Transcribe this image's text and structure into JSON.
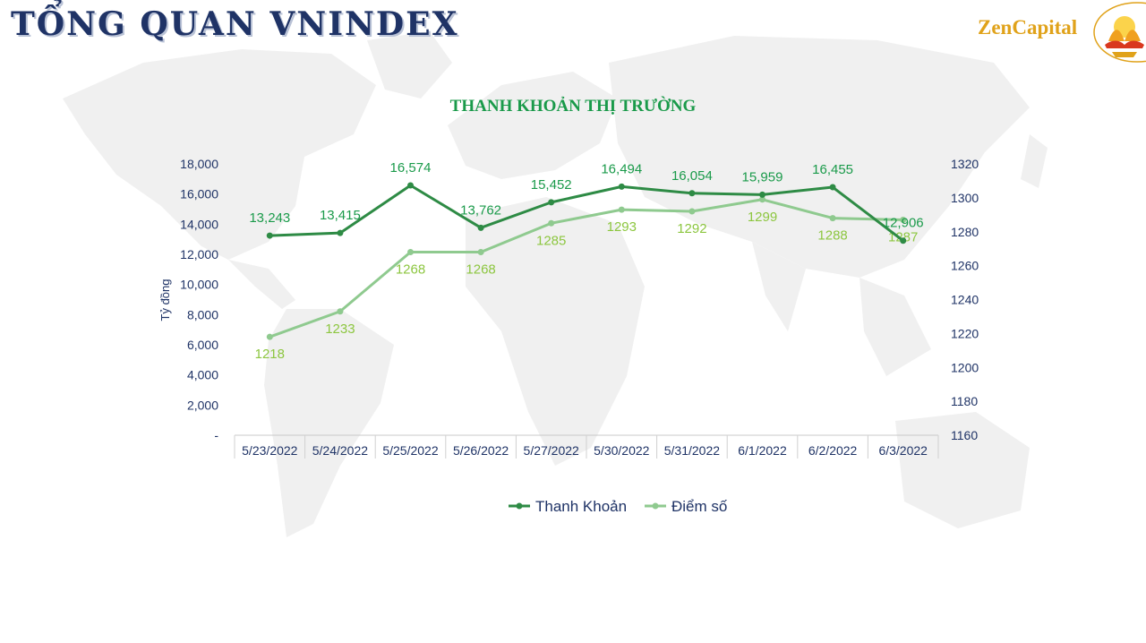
{
  "header": {
    "title": "TỔNG QUAN VNINDEX",
    "brand": "ZenCapital",
    "brand_color": "#e0a21a",
    "title_color": "#1f3366"
  },
  "chart_data": {
    "type": "line",
    "title": "THANH KHOẢN THỊ TRƯỜNG",
    "categories": [
      "5/23/2022",
      "5/24/2022",
      "5/25/2022",
      "5/26/2022",
      "5/27/2022",
      "5/30/2022",
      "5/31/2022",
      "6/1/2022",
      "6/2/2022",
      "6/3/2022"
    ],
    "ylabel": "Tỷ đồng",
    "y_ticks": [
      "-",
      "2,000",
      "4,000",
      "6,000",
      "8,000",
      "10,000",
      "12,000",
      "14,000",
      "16,000",
      "18,000"
    ],
    "ylim": [
      0,
      18000
    ],
    "y2lim": [
      1160,
      1320
    ],
    "y2_ticks": [
      "1160",
      "1180",
      "1200",
      "1220",
      "1240",
      "1260",
      "1280",
      "1300",
      "1320"
    ],
    "legend_position": "bottom",
    "grid": false,
    "series": [
      {
        "name": "Thanh Khoản",
        "axis": "left",
        "color": "#2e8b45",
        "values": [
          13243,
          13415,
          16574,
          13762,
          15452,
          16494,
          16054,
          15959,
          16455,
          12906
        ],
        "labels": [
          "13,243",
          "13,415",
          "16,574",
          "13,762",
          "15,452",
          "16,494",
          "16,054",
          "15,959",
          "16,455",
          "12,906"
        ],
        "label_color": "#1a9a4a"
      },
      {
        "name": "Điểm số",
        "axis": "right",
        "color": "#8fca8f",
        "values": [
          1218,
          1233,
          1268,
          1268,
          1285,
          1293,
          1292,
          1299,
          1288,
          1287
        ],
        "labels": [
          "1218",
          "1233",
          "1268",
          "1268",
          "1285",
          "1293",
          "1292",
          "1299",
          "1288",
          "1287"
        ],
        "label_color": "#8cc63f"
      }
    ]
  }
}
